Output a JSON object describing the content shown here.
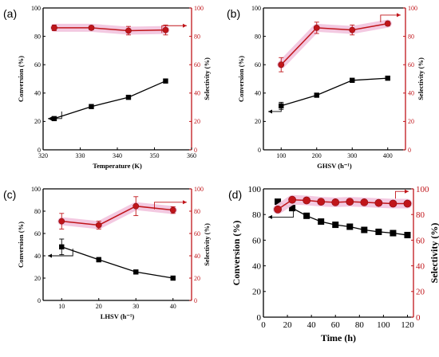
{
  "colors": {
    "conversion": "#000000",
    "selectivity": "#c0151a",
    "highlight": "#f2c6df"
  },
  "chart_data": [
    {
      "panel": "(a)",
      "type": "line",
      "xlabel": "Temperature (K)",
      "ylabel_left": "Conversion (%)",
      "ylabel_right": "Selectivity (%)",
      "xlim": [
        320,
        360
      ],
      "ylim_left": [
        0,
        100
      ],
      "ylim_right": [
        0,
        100
      ],
      "xticks": [
        320,
        330,
        340,
        350,
        360
      ],
      "yticks_left": [
        0,
        20,
        40,
        60,
        80,
        100
      ],
      "yticks_right": [
        0,
        20,
        40,
        60,
        80,
        100
      ],
      "series": [
        {
          "axis": "left",
          "x": [
            323,
            333,
            343,
            353
          ],
          "values": [
            22,
            30.5,
            37,
            48.5
          ],
          "errors": [
            0,
            0,
            0,
            0
          ]
        },
        {
          "axis": "right",
          "x": [
            323,
            333,
            343,
            353
          ],
          "values": [
            86,
            86,
            84,
            84.5
          ],
          "errors": [
            2,
            1.5,
            3,
            3.5
          ]
        }
      ],
      "arrow_left": {
        "x": 325,
        "y": 22
      },
      "arrow_right": {
        "x": 352,
        "y": 87.5
      }
    },
    {
      "panel": "(b)",
      "type": "line",
      "xlabel": "GHSV (h⁻¹)",
      "ylabel_left": "Conversion (%)",
      "ylabel_right": "Selectivity (%)",
      "xlim": [
        50,
        450
      ],
      "ylim_left": [
        0,
        100
      ],
      "ylim_right": [
        0,
        100
      ],
      "xticks": [
        100,
        200,
        300,
        400
      ],
      "yticks_left": [
        0,
        20,
        40,
        60,
        80,
        100
      ],
      "yticks_right": [
        0,
        20,
        40,
        60,
        80,
        100
      ],
      "series": [
        {
          "axis": "left",
          "x": [
            100,
            200,
            300,
            400
          ],
          "values": [
            31,
            38.5,
            49,
            50.5
          ],
          "errors": [
            2.5,
            0,
            1,
            1
          ]
        },
        {
          "axis": "right",
          "x": [
            100,
            200,
            300,
            400
          ],
          "values": [
            60,
            86,
            84.5,
            89
          ],
          "errors": [
            5,
            4,
            3.5,
            1.5
          ]
        }
      ],
      "arrow_left": {
        "x": 100,
        "y": 27
      },
      "arrow_right": {
        "x": 380,
        "y": 95
      }
    },
    {
      "panel": "(c)",
      "type": "line",
      "xlabel": "LHSV (h⁻¹)",
      "ylabel_left": "Conversion (%)",
      "ylabel_right": "Selectivity (%)",
      "xlim": [
        5,
        45
      ],
      "ylim_left": [
        0,
        100
      ],
      "ylim_right": [
        0,
        100
      ],
      "xticks": [
        10,
        20,
        30,
        40
      ],
      "yticks_left": [
        0,
        20,
        40,
        60,
        80,
        100
      ],
      "yticks_right": [
        0,
        20,
        40,
        60,
        80,
        100
      ],
      "series": [
        {
          "axis": "left",
          "x": [
            10,
            20,
            30,
            40
          ],
          "values": [
            48,
            36.5,
            25.5,
            20
          ],
          "errors": [
            7,
            2,
            1.5,
            0.5
          ]
        },
        {
          "axis": "right",
          "x": [
            10,
            20,
            30,
            40
          ],
          "values": [
            71,
            67.5,
            84.5,
            81
          ],
          "errors": [
            7,
            3.5,
            8.5,
            3
          ]
        }
      ],
      "arrow_left": {
        "x": 13,
        "y": 40
      },
      "arrow_right": {
        "x": 35,
        "y": 88
      }
    },
    {
      "panel": "(d)",
      "type": "line",
      "xlabel": "Time (h)",
      "ylabel_left": "Conversion (%)",
      "ylabel_right": "Selectivity (%)",
      "xlim": [
        0,
        125
      ],
      "ylim_left": [
        0,
        100
      ],
      "ylim_right": [
        0,
        100
      ],
      "xticks": [
        0,
        20,
        40,
        60,
        80,
        100,
        120
      ],
      "yticks_left": [
        0,
        20,
        40,
        60,
        80,
        100
      ],
      "yticks_right": [
        0,
        20,
        40,
        60,
        80,
        100
      ],
      "series": [
        {
          "axis": "left",
          "x": [
            12,
            24,
            36,
            48,
            60,
            72,
            84,
            96,
            108,
            120
          ],
          "values": [
            90,
            85,
            79,
            74.5,
            72,
            70.5,
            68,
            66.5,
            65.5,
            64
          ],
          "errors": [
            0,
            0,
            0,
            0,
            0,
            0,
            0,
            0,
            0,
            0
          ]
        },
        {
          "axis": "right",
          "x": [
            12,
            24,
            36,
            48,
            60,
            72,
            84,
            96,
            108,
            120
          ],
          "values": [
            84,
            91.5,
            91,
            90,
            89.5,
            90,
            89.5,
            89,
            88.5,
            88.5
          ],
          "errors": [
            0,
            0,
            0,
            0,
            0,
            0,
            0,
            0,
            0,
            0
          ]
        }
      ],
      "arrow_left": {
        "x": 25,
        "y": 78
      },
      "arrow_right": {
        "x": 110,
        "y": 98
      }
    }
  ]
}
